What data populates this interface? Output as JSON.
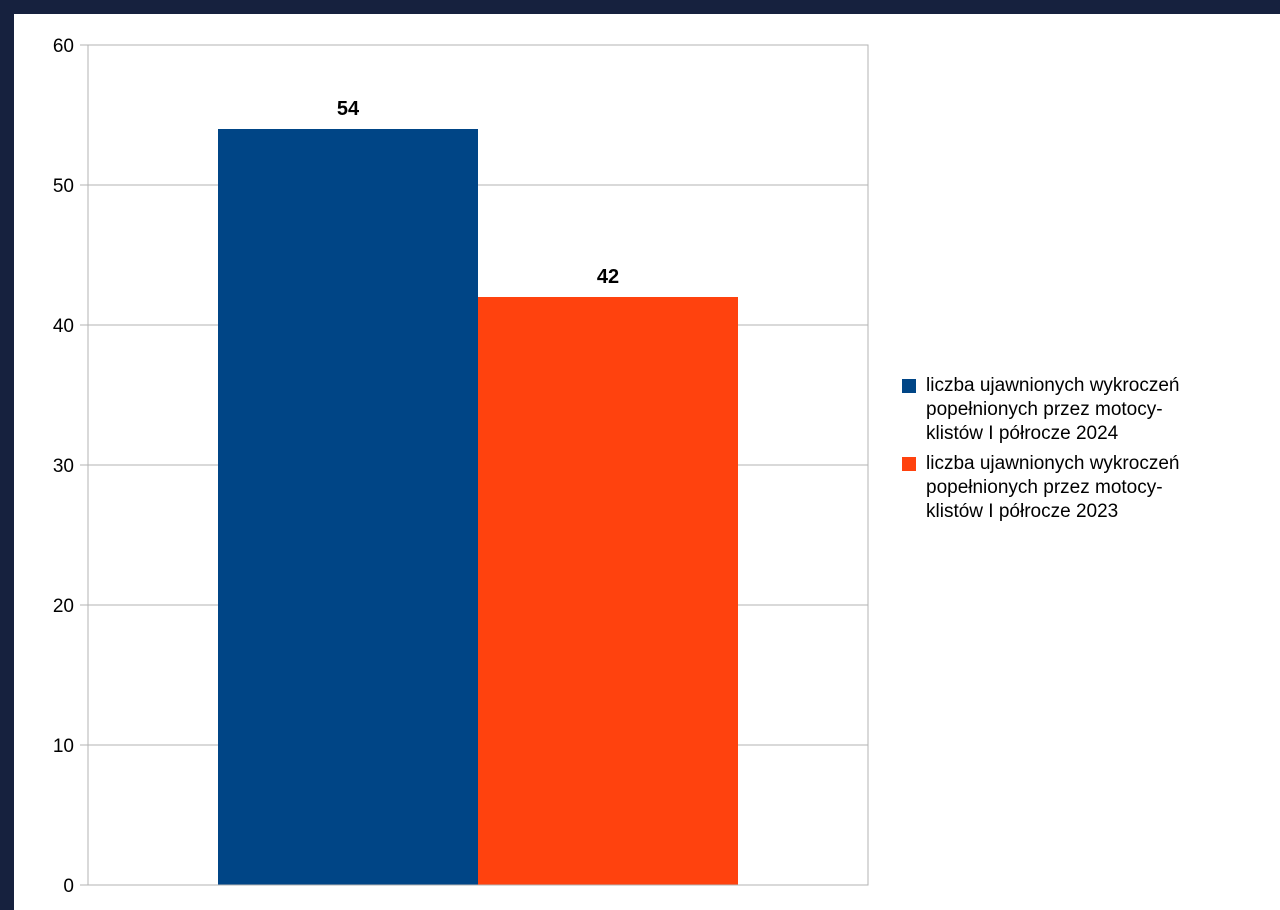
{
  "chart_data": {
    "type": "bar",
    "categories": [
      ""
    ],
    "series": [
      {
        "name": "liczba ujawnionych wykroczeń popełnionych przez motocy-klistów I półrocze 2024",
        "legend_lines": [
          "liczba ujawnionych wykroczeń",
          "popełnionych przez motocy-",
          "klistów I półrocze 2024"
        ],
        "values": [
          54
        ],
        "data_labels": [
          "54"
        ],
        "color": "#004586"
      },
      {
        "name": "liczba ujawnionych wykroczeń popełnionych przez motocy-klistów I półrocze 2023",
        "legend_lines": [
          "liczba ujawnionych wykroczeń",
          "popełnionych przez motocy-",
          "klistów I półrocze 2023"
        ],
        "values": [
          42
        ],
        "data_labels": [
          "42"
        ],
        "color": "#ff420e"
      }
    ],
    "title": "",
    "xlabel": "",
    "ylabel": "",
    "ylim": [
      0,
      60
    ],
    "yticks": [
      0,
      10,
      20,
      30,
      40,
      50,
      60
    ],
    "ytick_labels": [
      "0",
      "10",
      "20",
      "30",
      "40",
      "50",
      "60"
    ],
    "grid": "horizontal",
    "legend_position": "right",
    "background": "#ffffff",
    "frame_color": "#16213e",
    "gridline_color": "#b3b3b3"
  }
}
